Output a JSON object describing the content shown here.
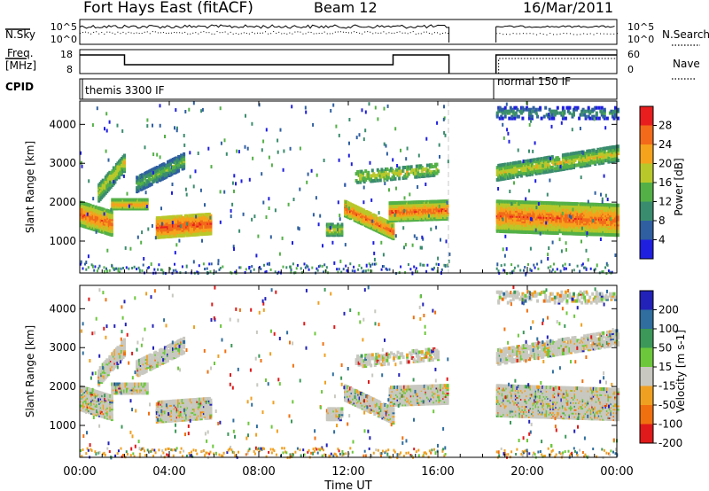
{
  "header": {
    "station": "Fort Hays East (fitACF)",
    "beam": "Beam 12",
    "date": "16/Mar/2011"
  },
  "top_panels": {
    "nsky_label": "N.Sky",
    "nsearch_label": "N.Search",
    "noise_ticks": [
      "10^5",
      "10^0"
    ],
    "freq_label_1": "Freq.",
    "freq_label_2": "[MHz]",
    "freq_ticks": [
      "18",
      "8"
    ],
    "nave_label": "Nave",
    "nave_ticks": [
      "60",
      "0"
    ],
    "cpid_label": "CPID",
    "cpid_segments": [
      {
        "text": "themis 3300 IF",
        "start_hour": 0.0,
        "end_hour": 16.5
      },
      {
        "text": "normal 150 IF",
        "start_hour": 18.6,
        "end_hour": 24.0
      }
    ]
  },
  "chart_data": [
    {
      "type": "heatmap",
      "panel": "power",
      "ylabel": "Slant Range [km]",
      "xlim": [
        0,
        24
      ],
      "ylim": [
        180,
        4600
      ],
      "yticks": [
        "1000",
        "2000",
        "3000",
        "4000"
      ],
      "colorbar": {
        "label": "Power [dB]",
        "ticks": [
          "4",
          "8",
          "12",
          "16",
          "20",
          "24",
          "28"
        ],
        "colors": [
          "#1f1fe0",
          "#2f5fa0",
          "#3a8c6e",
          "#53b046",
          "#b8c82a",
          "#f5a21c",
          "#f26a1a",
          "#e81e1e"
        ]
      },
      "data_gap_hours": [
        16.5,
        18.6
      ]
    },
    {
      "type": "heatmap",
      "panel": "velocity",
      "xlabel": "Time UT",
      "ylabel": "Slant Range [km]",
      "xlim": [
        0,
        24
      ],
      "ylim": [
        180,
        4600
      ],
      "xticks": [
        "00:00",
        "04:00",
        "08:00",
        "12:00",
        "16:00",
        "20:00",
        "00:00"
      ],
      "yticks": [
        "1000",
        "2000",
        "3000",
        "4000"
      ],
      "colorbar": {
        "label": "Velocity [m s-1]",
        "ticks": [
          "200",
          "100",
          "50",
          "15",
          "-15",
          "-50",
          "-100",
          "-200"
        ],
        "colors": [
          "#2222b8",
          "#2f6e9e",
          "#3b9858",
          "#6cc83a",
          "#c8c8c0",
          "#f0a020",
          "#f07010",
          "#e01a1a"
        ]
      },
      "data_gap_hours": [
        16.5,
        18.6
      ]
    }
  ]
}
